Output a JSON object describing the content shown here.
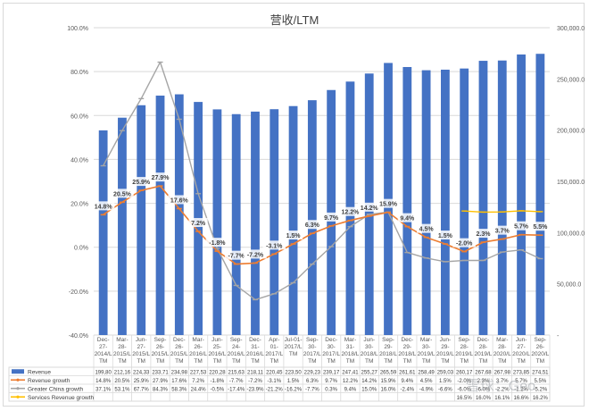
{
  "chart_data": {
    "type": "bar",
    "title": "营收/LTM",
    "categories": [
      "Dec-27-2014/LTM",
      "Mar-28-2015/LTM",
      "Jun-27-2015/LTM",
      "Sep-26-2015/LTM",
      "Dec-26-2015/LTM",
      "Mar-26-2016/LTM",
      "Jun-25-2016/LTM",
      "Sep-24-2016/LTM",
      "Dec-31-2016/LTM",
      "Apr-01-2017/LTM",
      "Jul-01-2017/LTM",
      "Sep-30-2017/LTM",
      "Dec-30-2017/LTM",
      "Mar-31-2018/LTM",
      "Jun-30-2018/LTM",
      "Sep-29-2018/LTM",
      "Dec-29-2018/LTM",
      "Mar-30-2019/LTM",
      "Jun-29-2019/LTM",
      "Sep-28-2019/LTM",
      "Dec-28-2019/LTM",
      "Mar-28-2020/LTM",
      "Jun-27-2020/LTM",
      "Sep-26-2020/LTM"
    ],
    "category_lines": [
      [
        "Dec-",
        "27-",
        "2014/L",
        "TM"
      ],
      [
        "Mar-",
        "28-",
        "2015/L",
        "TM"
      ],
      [
        "Jun-",
        "27-",
        "2015/L",
        "TM"
      ],
      [
        "Sep-",
        "26-",
        "2015/L",
        "TM"
      ],
      [
        "Dec-",
        "26-",
        "2015/L",
        "TM"
      ],
      [
        "Mar-",
        "26-",
        "2016/L",
        "TM"
      ],
      [
        "Jun-",
        "25-",
        "2016/L",
        "TM"
      ],
      [
        "Sep-",
        "24-",
        "2016/L",
        "TM"
      ],
      [
        "Dec-",
        "31-",
        "2016/L",
        "TM"
      ],
      [
        "Apr-",
        "01-",
        "2017/L",
        "TM"
      ],
      [
        "Jul-01-",
        "2017/L",
        "TM"
      ],
      [
        "Sep-",
        "30-",
        "2017/L",
        "TM"
      ],
      [
        "Dec-",
        "30-",
        "2017/L",
        "TM"
      ],
      [
        "Mar-",
        "31-",
        "2018/L",
        "TM"
      ],
      [
        "Jun-",
        "30-",
        "2018/L",
        "TM"
      ],
      [
        "Sep-",
        "29-",
        "2018/L",
        "TM"
      ],
      [
        "Dec-",
        "29-",
        "2018/L",
        "TM"
      ],
      [
        "Mar-",
        "30-",
        "2019/L",
        "TM"
      ],
      [
        "Jun-",
        "29-",
        "2019/L",
        "TM"
      ],
      [
        "Sep-",
        "28-",
        "2019/L",
        "TM"
      ],
      [
        "Dec-",
        "28-",
        "2019/L",
        "TM"
      ],
      [
        "Mar-",
        "28-",
        "2020/L",
        "TM"
      ],
      [
        "Jun-",
        "27-",
        "2020/L",
        "TM"
      ],
      [
        "Sep-",
        "26-",
        "2020/L",
        "TM"
      ]
    ],
    "series": [
      {
        "name": "Revenue",
        "kind": "bar",
        "axis": "right",
        "color": "#4472c4",
        "values": [
          199800,
          212160,
          224330,
          233710,
          234980,
          227530,
          220280,
          215630,
          218110,
          220450,
          223500,
          229230,
          239170,
          247410,
          255270,
          265590,
          261610,
          258490,
          259030,
          260170,
          267680,
          267980,
          273850,
          274510
        ],
        "table_labels": [
          "199,80",
          "212,16",
          "224,33",
          "233,71",
          "234,98",
          "227,53",
          "220,28",
          "215,63",
          "218,11",
          "220,45",
          "223,50",
          "229,23",
          "239,17",
          "247,41",
          "255,27",
          "265,59",
          "261,61",
          "258,49",
          "259,03",
          "260,17",
          "267,68",
          "267,98",
          "273,85",
          "274,51"
        ]
      },
      {
        "name": "Revenue growth",
        "kind": "line",
        "axis": "left",
        "color": "#ed7d31",
        "values": [
          14.8,
          20.5,
          25.9,
          27.9,
          17.6,
          7.2,
          -1.8,
          -7.7,
          -7.2,
          -3.1,
          1.5,
          6.3,
          9.7,
          12.2,
          14.2,
          15.9,
          9.4,
          4.5,
          1.5,
          -2.0,
          2.3,
          3.7,
          5.7,
          5.5
        ],
        "labels": [
          "14.8%",
          "20.5%",
          "25.9%",
          "27.9%",
          "17.6%",
          "7.2%",
          "-1.8%",
          "-7.7%",
          "-7.2%",
          "-3.1%",
          "1.5%",
          "6.3%",
          "9.7%",
          "12.2%",
          "14.2%",
          "15.9%",
          "9.4%",
          "4.5%",
          "1.5%",
          "-2.0%",
          "2.3%",
          "3.7%",
          "5.7%",
          "5.5%"
        ],
        "table_labels": [
          "14.8%",
          "20.5%",
          "25.9%",
          "27.9%",
          "17.6%",
          "7.2%",
          "-1.8%",
          "-7.7%",
          "-7.2%",
          "-3.1%",
          "1.5%",
          "6.3%",
          "9.7%",
          "12.2%",
          "14.2%",
          "15.9%",
          "9.4%",
          "4.5%",
          "1.5%",
          "-2.0%",
          "2.3%",
          "3.7%",
          "5.7%",
          "5.5%"
        ]
      },
      {
        "name": "Greater China growth",
        "kind": "line",
        "axis": "left",
        "color": "#a5a5a5",
        "values": [
          37.1,
          53.1,
          67.7,
          84.3,
          58.3,
          24.4,
          -0.5,
          -17.4,
          -23.9,
          -21.2,
          -16.2,
          -7.7,
          0.3,
          9.4,
          15.0,
          16.0,
          -2.4,
          -4.9,
          -6.6,
          -6.0,
          -6.0,
          -2.2,
          -1.2,
          -5.2
        ],
        "table_labels": [
          "37.1%",
          "53.1%",
          "67.7%",
          "84.3%",
          "58.3%",
          "24.4%",
          "-0.5%",
          "-17.4%",
          "-23.9%",
          "-21.2%",
          "-16.2%",
          "-7.7%",
          "0.3%",
          "9.4%",
          "15.0%",
          "16.0%",
          "-2.4%",
          "-4.9%",
          "-6.6%",
          "-6.0%",
          "-6.0%",
          "-2.2%",
          "-1.2%",
          "-5.2%"
        ]
      },
      {
        "name": "Services Revenue growth",
        "kind": "line",
        "axis": "left",
        "color": "#ffc000",
        "values": [
          null,
          null,
          null,
          null,
          null,
          null,
          null,
          null,
          null,
          null,
          null,
          null,
          null,
          null,
          null,
          null,
          null,
          null,
          null,
          16.5,
          16.0,
          16.1,
          16.6,
          16.2
        ],
        "table_labels": [
          "",
          "",
          "",
          "",
          "",
          "",
          "",
          "",
          "",
          "",
          "",
          "",
          "",
          "",
          "",
          "",
          "",
          "",
          "",
          "16.5%",
          "16.0%",
          "16.1%",
          "16.6%",
          "16.2%"
        ]
      }
    ],
    "left_axis": {
      "ylim": [
        -40,
        100
      ],
      "ticks": [
        "-40.0%",
        "-20.0%",
        "0.0%",
        "20.0%",
        "40.0%",
        "60.0%",
        "80.0%",
        "100.0%"
      ]
    },
    "right_axis": {
      "ylim": [
        0,
        300000
      ],
      "ticks": [
        "-",
        "50,000.0",
        "100,000.0",
        "150,000.0",
        "200,000.0",
        "250,000.0",
        "300,000.0"
      ]
    },
    "grid": true,
    "legend": "data-table-bottom",
    "watermark": "雪球：Geo"
  },
  "colors": {
    "grid": "#d9d9d9",
    "axis_text": "#595959",
    "title": "#404040"
  }
}
